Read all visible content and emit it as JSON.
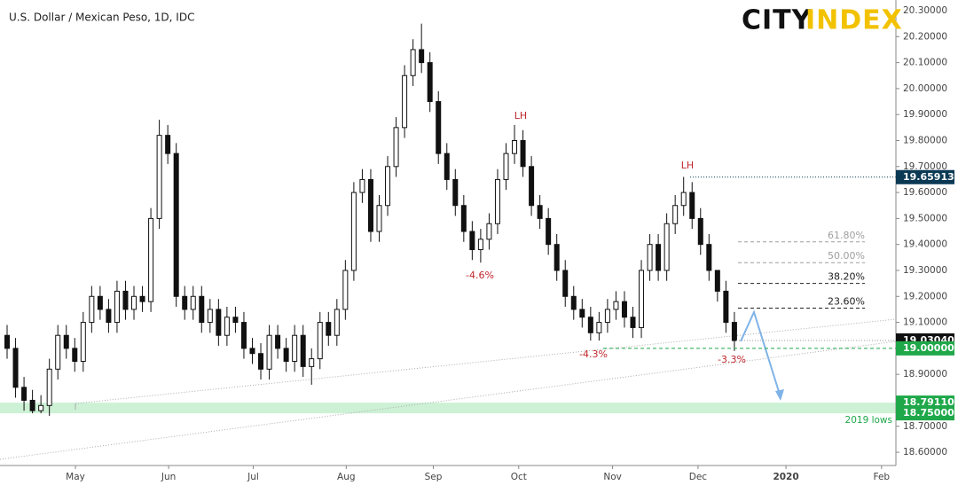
{
  "chart_data": {
    "type": "candlestick",
    "title": "U.S. Dollar / Mexican Peso, 1D, IDC",
    "brand": [
      "CITY",
      "INDEX"
    ],
    "open": [
      19.05,
      19.0,
      18.85,
      18.8,
      18.76,
      18.78,
      18.92,
      19.05,
      19.0,
      18.95,
      19.1,
      19.2,
      19.15,
      19.1,
      19.22,
      19.15,
      19.2,
      19.18,
      19.5,
      19.82,
      19.75,
      19.2,
      19.15,
      19.2,
      19.1,
      19.15,
      19.05,
      19.12,
      19.1,
      19.0,
      18.98,
      18.92,
      19.05,
      19.0,
      18.95,
      19.05,
      18.93,
      18.96,
      19.1,
      19.05,
      19.15,
      19.3,
      19.6,
      19.65,
      19.45,
      19.55,
      19.7,
      19.85,
      20.05,
      20.15,
      20.1,
      19.95,
      19.75,
      19.65,
      19.55,
      19.45,
      19.38,
      19.42,
      19.48,
      19.65,
      19.75,
      19.8,
      19.7,
      19.55,
      19.5,
      19.4,
      19.3,
      19.2,
      19.15,
      19.12,
      19.06,
      19.1,
      19.15,
      19.18,
      19.12,
      19.08,
      19.3,
      19.4,
      19.3,
      19.48,
      19.55,
      19.6,
      19.5,
      19.4,
      19.3,
      19.22,
      19.1
    ],
    "high": [
      19.09,
      19.04,
      18.89,
      18.84,
      18.82,
      18.96,
      19.09,
      19.09,
      19.04,
      19.14,
      19.24,
      19.24,
      19.19,
      19.26,
      19.26,
      19.24,
      19.24,
      19.54,
      19.88,
      19.86,
      19.79,
      19.24,
      19.24,
      19.24,
      19.19,
      19.19,
      19.16,
      19.16,
      19.14,
      19.04,
      19.02,
      19.09,
      19.09,
      19.04,
      19.09,
      19.09,
      19.0,
      19.14,
      19.14,
      19.19,
      19.34,
      19.64,
      19.69,
      19.69,
      19.59,
      19.74,
      19.89,
      20.09,
      20.19,
      20.25,
      20.14,
      19.99,
      19.79,
      19.69,
      19.59,
      19.49,
      19.46,
      19.52,
      19.69,
      19.79,
      19.86,
      19.84,
      19.74,
      19.59,
      19.54,
      19.44,
      19.34,
      19.24,
      19.19,
      19.16,
      19.14,
      19.19,
      19.22,
      19.22,
      19.16,
      19.34,
      19.44,
      19.44,
      19.52,
      19.59,
      19.66,
      19.64,
      19.54,
      19.44,
      19.29,
      19.26,
      19.14
    ],
    "low": [
      18.96,
      18.81,
      18.76,
      18.75,
      18.75,
      18.74,
      18.88,
      18.96,
      18.91,
      18.91,
      19.06,
      19.11,
      19.06,
      19.06,
      19.11,
      19.11,
      19.14,
      19.14,
      19.46,
      19.71,
      19.16,
      19.11,
      19.11,
      19.06,
      19.06,
      19.01,
      19.01,
      19.06,
      18.96,
      18.94,
      18.88,
      18.88,
      18.96,
      18.91,
      18.91,
      18.89,
      18.86,
      18.92,
      19.01,
      19.01,
      19.11,
      19.26,
      19.56,
      19.41,
      19.41,
      19.51,
      19.66,
      19.81,
      20.01,
      20.06,
      19.91,
      19.71,
      19.61,
      19.51,
      19.41,
      19.34,
      19.33,
      19.38,
      19.44,
      19.61,
      19.71,
      19.66,
      19.51,
      19.46,
      19.36,
      19.26,
      19.16,
      19.11,
      19.08,
      19.03,
      19.03,
      19.06,
      19.11,
      19.08,
      19.04,
      19.04,
      19.26,
      19.26,
      19.26,
      19.44,
      19.51,
      19.46,
      19.36,
      19.26,
      19.18,
      19.06,
      18.99
    ],
    "close": [
      19.0,
      18.85,
      18.8,
      18.76,
      18.78,
      18.92,
      19.05,
      19.0,
      18.95,
      19.1,
      19.2,
      19.15,
      19.1,
      19.22,
      19.15,
      19.2,
      19.18,
      19.5,
      19.82,
      19.75,
      19.2,
      19.15,
      19.2,
      19.1,
      19.15,
      19.05,
      19.12,
      19.1,
      19.0,
      18.98,
      18.92,
      19.05,
      19.0,
      18.95,
      19.05,
      18.93,
      18.96,
      19.1,
      19.05,
      19.15,
      19.3,
      19.6,
      19.65,
      19.45,
      19.55,
      19.7,
      19.85,
      20.05,
      20.15,
      20.1,
      19.95,
      19.75,
      19.65,
      19.55,
      19.45,
      19.38,
      19.42,
      19.48,
      19.65,
      19.75,
      19.8,
      19.7,
      19.55,
      19.5,
      19.4,
      19.3,
      19.2,
      19.15,
      19.12,
      19.06,
      19.1,
      19.15,
      19.18,
      19.12,
      19.08,
      19.3,
      19.4,
      19.3,
      19.48,
      19.55,
      19.6,
      19.5,
      19.4,
      19.3,
      19.22,
      19.1,
      19.03
    ],
    "xlim": [
      -0.84,
      105.1
    ],
    "xticks": [
      {
        "value": 8.08,
        "label": "May"
      },
      {
        "value": 19.1,
        "label": "Jun"
      },
      {
        "value": 29.1,
        "label": "Jul"
      },
      {
        "value": 40.1,
        "label": "Aug"
      },
      {
        "value": 50.4,
        "label": "Sep"
      },
      {
        "value": 60.5,
        "label": "Oct"
      },
      {
        "value": 71.6,
        "label": "Nov"
      },
      {
        "value": 81.7,
        "label": "Dec"
      },
      {
        "value": 92.1,
        "label": "2020"
      },
      {
        "value": 103.4,
        "label": "Feb"
      }
    ],
    "ylim": [
      18.549,
      20.341
    ],
    "yticks": [
      {
        "value": 18.6,
        "label": "18.60000"
      },
      {
        "value": 18.7,
        "label": "18.70000"
      },
      {
        "value": 18.9,
        "label": "18.90000"
      },
      {
        "value": 19.1,
        "label": "19.10000"
      },
      {
        "value": 19.2,
        "label": "19.20000"
      },
      {
        "value": 19.3,
        "label": "19.30000"
      },
      {
        "value": 19.4,
        "label": "19.40000"
      },
      {
        "value": 19.5,
        "label": "19.50000"
      },
      {
        "value": 19.6,
        "label": "19.60000"
      },
      {
        "value": 19.7,
        "label": "19.70000"
      },
      {
        "value": 19.8,
        "label": "19.80000"
      },
      {
        "value": 19.9,
        "label": "19.90000"
      },
      {
        "value": 20.0,
        "label": "20.00000"
      },
      {
        "value": 20.1,
        "label": "20.10000"
      },
      {
        "value": 20.2,
        "label": "20.20000"
      },
      {
        "value": 20.3,
        "label": "20.30000"
      }
    ],
    "fib_levels": [
      {
        "label": "61.80%",
        "value": 19.41,
        "color": "#9e9e9e"
      },
      {
        "label": "50.00%",
        "value": 19.33,
        "color": "#9e9e9e"
      },
      {
        "label": "38.20%",
        "value": 19.25,
        "color": "#222222"
      },
      {
        "label": "23.60%",
        "value": 19.155,
        "color": "#222222"
      }
    ],
    "price_tags": [
      {
        "label": "19.65913",
        "value": 19.65913,
        "color": "#0b3954"
      },
      {
        "label": "19.03040",
        "value": 19.0304,
        "color": "#111111"
      },
      {
        "label": "19.00000",
        "value": 19.0,
        "color": "#1fa84a"
      },
      {
        "label": "18.79110",
        "value": 18.7911,
        "color": "#1fa84a"
      },
      {
        "label": "18.75000",
        "value": 18.75,
        "color": "#1fa84a"
      }
    ],
    "annotations": [
      "LH",
      "LH",
      "-4.6%",
      "-4.3%",
      "-3.3%",
      "2019 lows"
    ]
  }
}
